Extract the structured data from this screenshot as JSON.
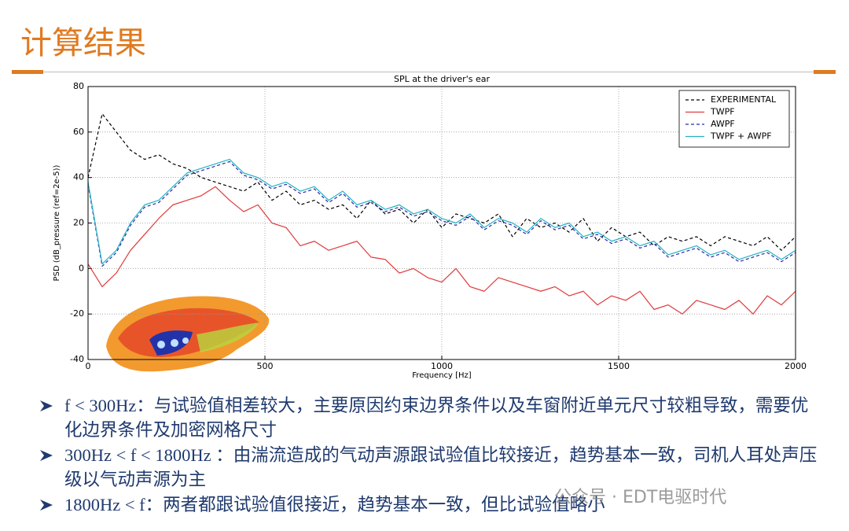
{
  "slide": {
    "title": "计算结果",
    "bullets": [
      "f < 300Hz：与试验值相差较大，主要原因约束边界条件以及车窗附近单元尺寸较粗导致，需要优化边界条件及加密网格尺寸",
      "300Hz < f < 1800Hz ：由湍流造成的气动声源跟试验值比较接近，趋势基本一致，司机人耳处声压级以气动声源为主",
      "1800Hz < f：两者都跟试验值很接近，趋势基本一致，但比试验值略小"
    ],
    "watermark": "公众号 · EDT电驱时代"
  },
  "chart_data": {
    "type": "line",
    "title": "SPL at the driver's ear",
    "x_label": "Frequency [Hz]",
    "y_label": "PSD (dB_pressure (ref=2e-5))",
    "x": [
      0,
      40,
      80,
      120,
      160,
      200,
      240,
      280,
      320,
      360,
      400,
      440,
      480,
      520,
      560,
      600,
      640,
      680,
      720,
      760,
      800,
      840,
      880,
      920,
      960,
      1000,
      1040,
      1080,
      1120,
      1160,
      1200,
      1240,
      1280,
      1320,
      1360,
      1400,
      1440,
      1480,
      1520,
      1560,
      1600,
      1640,
      1680,
      1720,
      1760,
      1800,
      1840,
      1880,
      1920,
      1960,
      2000
    ],
    "series": [
      {
        "name": "EXPERIMENTAL",
        "color": "#000000",
        "dashed": true,
        "values": [
          40,
          68,
          60,
          52,
          48,
          50,
          46,
          44,
          40,
          38,
          36,
          34,
          38,
          30,
          34,
          28,
          30,
          26,
          28,
          22,
          30,
          24,
          26,
          20,
          26,
          18,
          24,
          22,
          20,
          24,
          14,
          22,
          18,
          20,
          16,
          22,
          12,
          18,
          14,
          16,
          10,
          14,
          12,
          14,
          10,
          14,
          12,
          10,
          14,
          8,
          14
        ]
      },
      {
        "name": "TWPF",
        "color": "#e03a3a",
        "dashed": false,
        "values": [
          2,
          -8,
          -2,
          8,
          15,
          22,
          28,
          30,
          32,
          36,
          30,
          25,
          28,
          20,
          18,
          10,
          12,
          8,
          10,
          12,
          5,
          4,
          -2,
          0,
          -4,
          -6,
          0,
          -8,
          -10,
          -4,
          -6,
          -8,
          -10,
          -8,
          -12,
          -10,
          -16,
          -12,
          -14,
          -10,
          -18,
          -16,
          -20,
          -14,
          -16,
          -18,
          -14,
          -20,
          -12,
          -16,
          -10
        ]
      },
      {
        "name": "AWPF",
        "color": "#2a2aa8",
        "dashed": true,
        "values": [
          37,
          1,
          7,
          19,
          27,
          29,
          35,
          41,
          43,
          45,
          47,
          41,
          39,
          35,
          37,
          33,
          35,
          29,
          33,
          27,
          29,
          25,
          27,
          23,
          25,
          21,
          19,
          23,
          17,
          21,
          19,
          15,
          21,
          17,
          19,
          13,
          15,
          11,
          13,
          9,
          11,
          5,
          7,
          9,
          5,
          7,
          3,
          5,
          7,
          3,
          7
        ]
      },
      {
        "name": "TWPF + AWPF",
        "color": "#22b3c4",
        "dashed": false,
        "values": [
          38,
          2,
          8,
          20,
          28,
          30,
          36,
          42,
          44,
          46,
          48,
          42,
          40,
          36,
          38,
          34,
          36,
          30,
          34,
          28,
          30,
          26,
          28,
          24,
          26,
          22,
          20,
          24,
          18,
          22,
          20,
          16,
          22,
          18,
          20,
          14,
          16,
          12,
          14,
          10,
          12,
          6,
          8,
          10,
          6,
          8,
          4,
          6,
          8,
          4,
          8
        ]
      }
    ],
    "xlim": [
      0,
      2000
    ],
    "xticks": [
      0,
      500,
      1000,
      1500,
      2000
    ],
    "ylim": [
      -40,
      80
    ],
    "yticks": [
      -40,
      -20,
      0,
      20,
      40,
      60,
      80
    ],
    "grid": true,
    "legend": "upper right"
  }
}
